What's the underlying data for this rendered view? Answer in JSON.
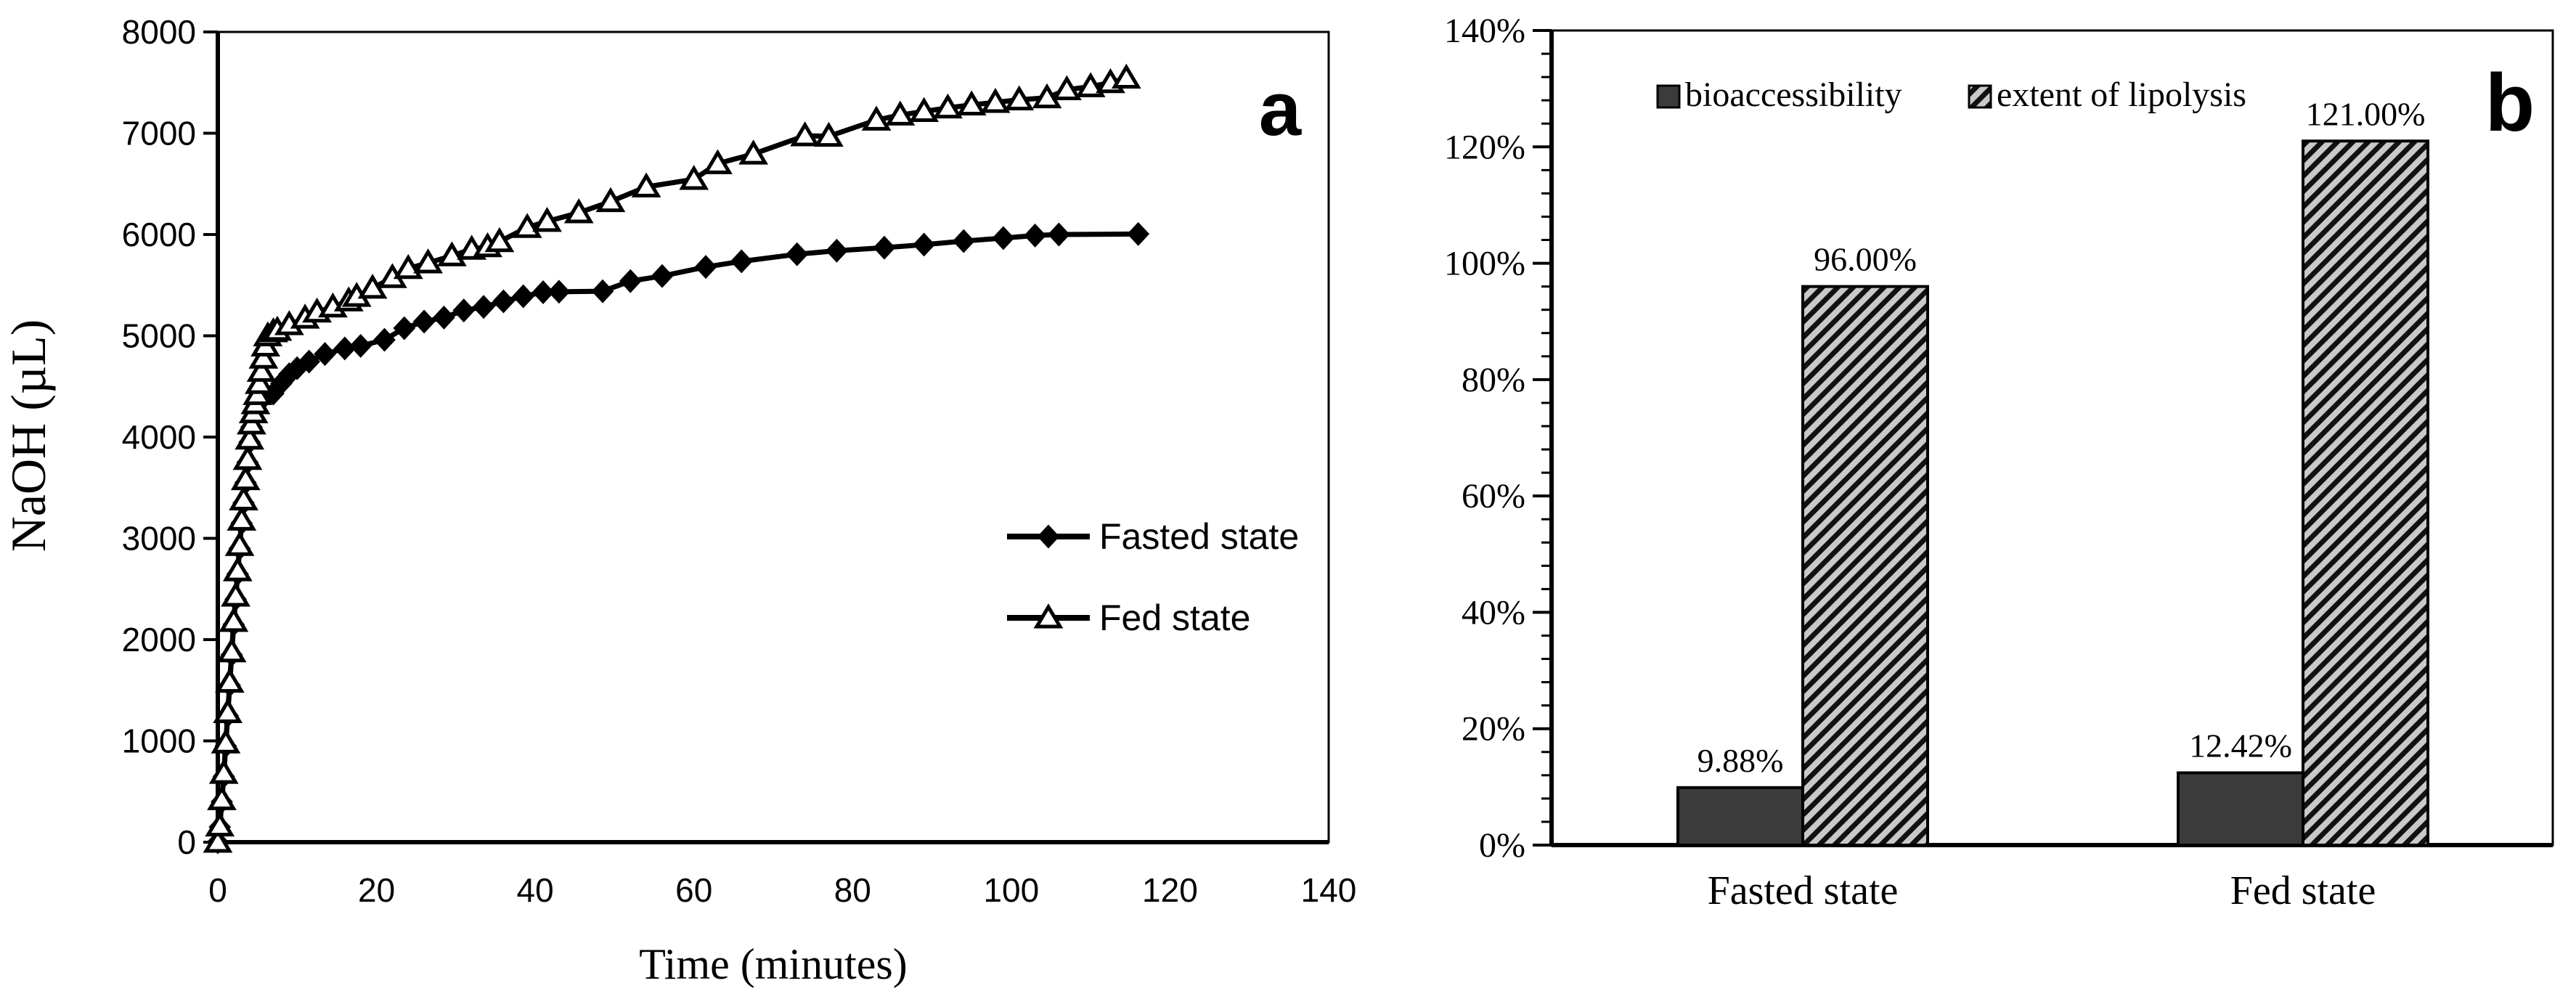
{
  "figure": {
    "panel_a": {
      "panel_label": "a"
    },
    "panel_b": {
      "panel_label": "b"
    }
  },
  "colors": {
    "ink": "#000000",
    "bar_dark": "#3b3b3b",
    "hatch_bg": "#c9c9c9",
    "hatch_line": "#111111",
    "data_label_gray": "#3f3f3f",
    "legend_text_gray": "#555555",
    "background": "#ffffff"
  },
  "chart_data": [
    {
      "id": "titration-curve",
      "type": "line",
      "title": "",
      "xlabel": "Time (minutes)",
      "ylabel": "NaOH (µL)",
      "xlim": [
        0,
        140
      ],
      "ylim": [
        0,
        8000
      ],
      "xticks": [
        0,
        20,
        40,
        60,
        80,
        100,
        120,
        140
      ],
      "yticks": [
        0,
        1000,
        2000,
        3000,
        4000,
        5000,
        6000,
        7000,
        8000
      ],
      "grid": false,
      "legend_position": "inside-right",
      "series": [
        {
          "name": "Fasted state",
          "marker": "diamond-filled",
          "points": [
            [
              0,
              0
            ],
            [
              0.25,
              150
            ],
            [
              0.5,
              400
            ],
            [
              0.75,
              650
            ],
            [
              1,
              950
            ],
            [
              1.25,
              1250
            ],
            [
              1.5,
              1550
            ],
            [
              1.75,
              1850
            ],
            [
              2,
              2150
            ],
            [
              2.25,
              2400
            ],
            [
              2.5,
              2650
            ],
            [
              2.75,
              2900
            ],
            [
              3,
              3150
            ],
            [
              3.25,
              3350
            ],
            [
              3.5,
              3550
            ],
            [
              3.75,
              3750
            ],
            [
              4,
              3950
            ],
            [
              4.25,
              4100
            ],
            [
              4.5,
              4200
            ],
            [
              4.75,
              4280
            ],
            [
              5,
              4330
            ],
            [
              5.5,
              4380
            ],
            [
              6,
              4410
            ],
            [
              7,
              4430
            ],
            [
              8,
              4530
            ],
            [
              9,
              4620
            ],
            [
              10,
              4680
            ],
            [
              11.5,
              4745
            ],
            [
              13.5,
              4820
            ],
            [
              16,
              4875
            ],
            [
              18,
              4900
            ],
            [
              21,
              4960
            ],
            [
              23.5,
              5075
            ],
            [
              26,
              5140
            ],
            [
              28.5,
              5180
            ],
            [
              31,
              5250
            ],
            [
              33.5,
              5285
            ],
            [
              36,
              5340
            ],
            [
              38.5,
              5390
            ],
            [
              41,
              5430
            ],
            [
              43,
              5435
            ],
            [
              48.5,
              5440
            ],
            [
              52,
              5540
            ],
            [
              56,
              5590
            ],
            [
              61.5,
              5680
            ],
            [
              66,
              5735
            ],
            [
              73,
              5805
            ],
            [
              78,
              5840
            ],
            [
              84,
              5870
            ],
            [
              89,
              5900
            ],
            [
              94,
              5935
            ],
            [
              99,
              5965
            ],
            [
              103,
              5990
            ],
            [
              106,
              6000
            ],
            [
              116,
              6005
            ]
          ]
        },
        {
          "name": "Fed state",
          "marker": "triangle-open",
          "points": [
            [
              0,
              0
            ],
            [
              0.25,
              160
            ],
            [
              0.5,
              420
            ],
            [
              0.75,
              680
            ],
            [
              1,
              980
            ],
            [
              1.25,
              1280
            ],
            [
              1.5,
              1580
            ],
            [
              1.75,
              1880
            ],
            [
              2,
              2180
            ],
            [
              2.25,
              2430
            ],
            [
              2.5,
              2680
            ],
            [
              2.75,
              2930
            ],
            [
              3,
              3180
            ],
            [
              3.25,
              3380
            ],
            [
              3.5,
              3580
            ],
            [
              3.75,
              3780
            ],
            [
              4,
              3980
            ],
            [
              4.25,
              4130
            ],
            [
              4.5,
              4240
            ],
            [
              4.75,
              4330
            ],
            [
              5,
              4420
            ],
            [
              5.25,
              4530
            ],
            [
              5.5,
              4650
            ],
            [
              5.75,
              4780
            ],
            [
              6,
              4900
            ],
            [
              6.3,
              5000
            ],
            [
              7,
              5040
            ],
            [
              7.5,
              5055
            ],
            [
              9,
              5110
            ],
            [
              11,
              5175
            ],
            [
              12.5,
              5235
            ],
            [
              14.5,
              5285
            ],
            [
              16.5,
              5345
            ],
            [
              17.5,
              5390
            ],
            [
              19.5,
              5470
            ],
            [
              22,
              5575
            ],
            [
              24,
              5665
            ],
            [
              26.5,
              5720
            ],
            [
              29.5,
              5790
            ],
            [
              32,
              5855
            ],
            [
              34,
              5880
            ],
            [
              35.5,
              5930
            ],
            [
              39,
              6070
            ],
            [
              41.5,
              6130
            ],
            [
              45.5,
              6215
            ],
            [
              49.5,
              6325
            ],
            [
              54,
              6470
            ],
            [
              60,
              6545
            ],
            [
              63,
              6700
            ],
            [
              67.5,
              6795
            ],
            [
              74,
              6975
            ],
            [
              77,
              6970
            ],
            [
              83,
              7130
            ],
            [
              86,
              7180
            ],
            [
              89,
              7215
            ],
            [
              92,
              7250
            ],
            [
              95,
              7280
            ],
            [
              98,
              7305
            ],
            [
              101,
              7330
            ],
            [
              104.5,
              7350
            ],
            [
              107,
              7430
            ],
            [
              110,
              7460
            ],
            [
              112.5,
              7500
            ],
            [
              114.5,
              7545
            ]
          ]
        }
      ]
    },
    {
      "id": "bioaccessibility-lipolysis",
      "type": "bar",
      "title": "",
      "xlabel": "",
      "ylabel": "",
      "categories": [
        "Fasted state",
        "Fed state"
      ],
      "series": [
        {
          "name": "bioaccessibility",
          "style": "solid-dark",
          "values_percent": [
            9.88,
            12.42
          ],
          "labels": [
            "9.88%",
            "12.42%"
          ]
        },
        {
          "name": "extent of lipolysis",
          "style": "hatched",
          "values_percent": [
            96.0,
            121.0
          ],
          "labels": [
            "96.00%",
            "121.00%"
          ]
        }
      ],
      "ylim_percent": [
        0,
        140
      ],
      "yticks_percent": [
        0,
        20,
        40,
        60,
        80,
        100,
        120,
        140
      ],
      "minor_tick_step_percent": 4,
      "ytick_suffix": "%",
      "grid": false,
      "legend_position": "inside-top"
    }
  ]
}
